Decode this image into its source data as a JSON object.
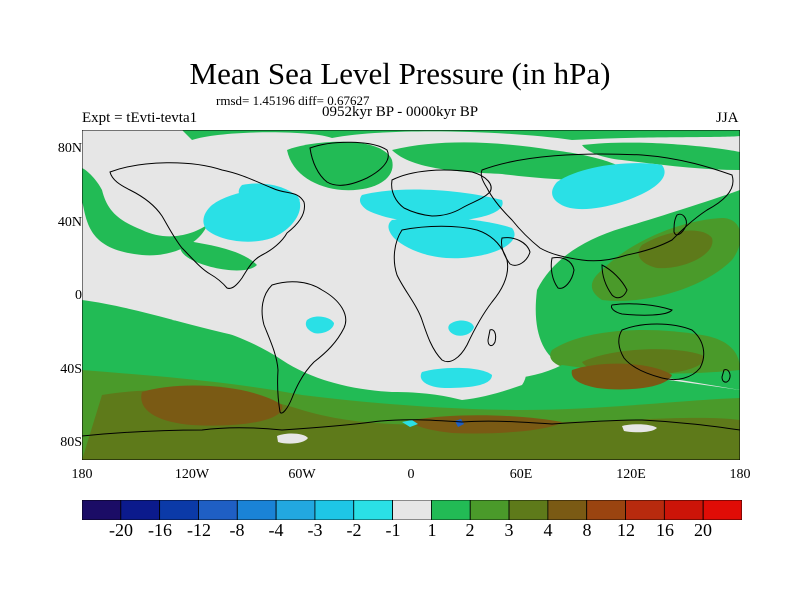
{
  "title": "Mean Sea Level Pressure (in hPa)",
  "stats": "rmsd= 1.45196 diff= 0.67627",
  "experiment": "Expt = tEvti-tevta1",
  "period": "0952kyr BP - 0000kyr BP",
  "season": "JJA",
  "lat_labels": [
    "80N",
    "40N",
    "0",
    "40S",
    "80S"
  ],
  "lon_labels": [
    "180",
    "120W",
    "60W",
    "0",
    "60E",
    "120E",
    "180"
  ],
  "colorbar": {
    "labels": [
      "-20",
      "-16",
      "-12",
      "-8",
      "-4",
      "-3",
      "-2",
      "-1",
      "1",
      "2",
      "3",
      "4",
      "8",
      "12",
      "16",
      "20"
    ],
    "colors": [
      "#1b0c66",
      "#0b1a8c",
      "#0b3aa8",
      "#1f5fc4",
      "#1a83d6",
      "#22a8e0",
      "#1ec6e6",
      "#2ae0e6",
      "#e6e6e6",
      "#22bb55",
      "#4a9a2a",
      "#5e7a1a",
      "#7a5a14",
      "#9a4410",
      "#b82a0e",
      "#cc1408",
      "#e00c06"
    ]
  },
  "colors": {
    "neutral": "#e6e6e6",
    "cyan": "#2ae0e6",
    "green": "#22bb55",
    "darkgreen": "#4a9a2a",
    "olive": "#5e7a1a",
    "brown": "#7a5a14",
    "blue": "#1f5fc4"
  }
}
